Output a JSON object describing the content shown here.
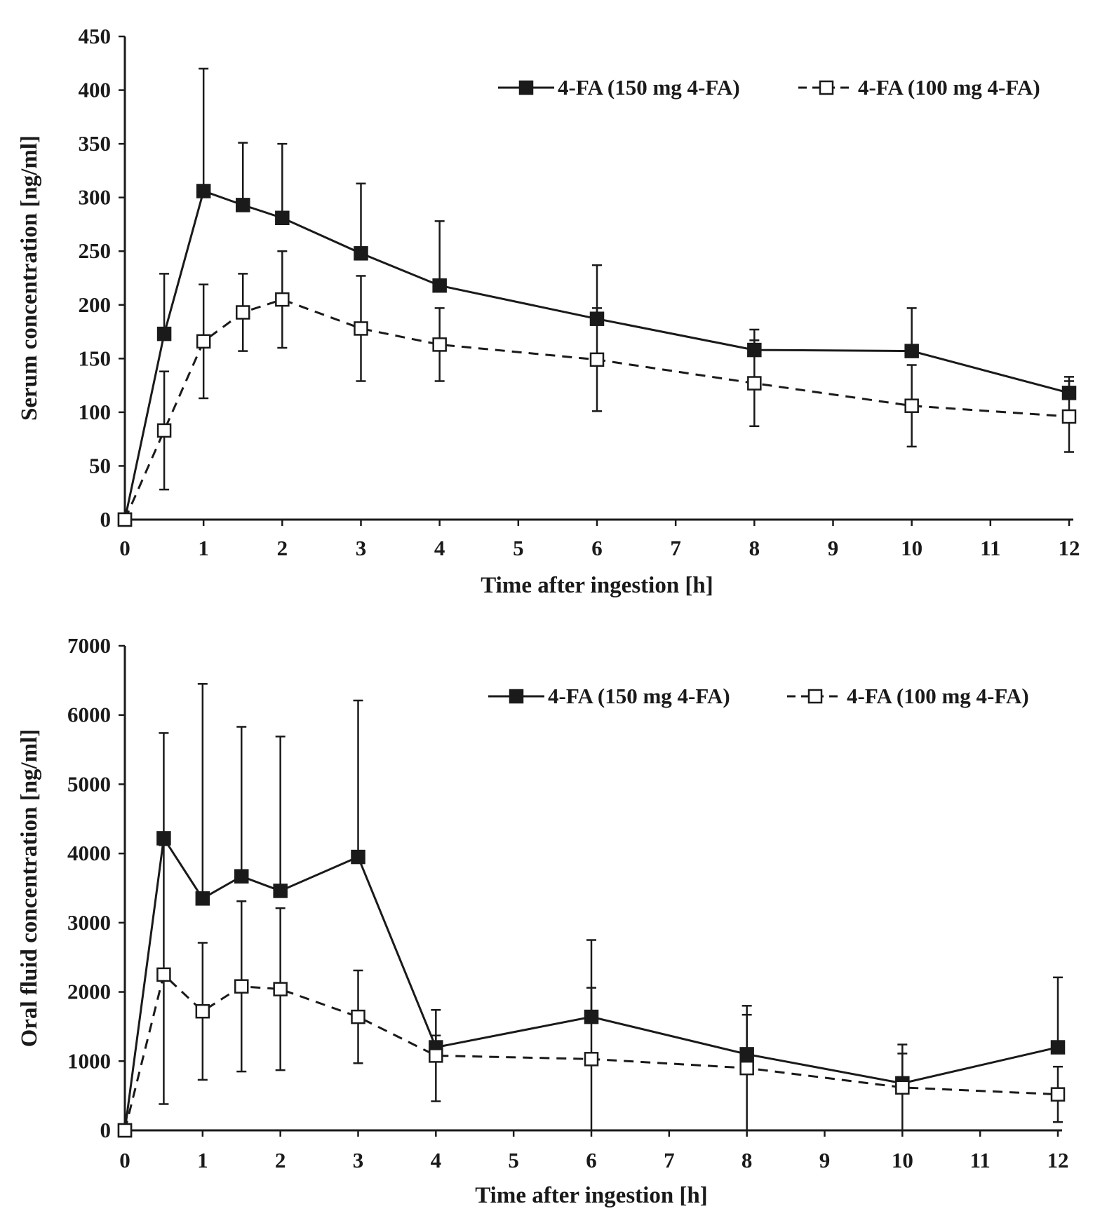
{
  "chart_data": [
    {
      "type": "line",
      "xlabel": "Time after ingestion [h]",
      "ylabel": "Serum concentration  [ng/ml]",
      "xlim": [
        0,
        12
      ],
      "ylim": [
        0,
        450
      ],
      "xticks": [
        0,
        1,
        2,
        3,
        4,
        5,
        6,
        7,
        8,
        9,
        10,
        11,
        12
      ],
      "yticks": [
        0,
        50,
        100,
        150,
        200,
        250,
        300,
        350,
        400,
        450
      ],
      "grid": false,
      "legend_position": "top-right",
      "error_bars": "upper and lower for 100 mg series, upper only for 150 mg series",
      "series": [
        {
          "name": "4-FA (150 mg 4-FA)",
          "marker": "filled-square",
          "line": "solid",
          "x": [
            0,
            0.5,
            1,
            1.5,
            2,
            3,
            4,
            6,
            8,
            10,
            12
          ],
          "y": [
            0,
            173,
            306,
            293,
            281,
            248,
            218,
            187,
            158,
            157,
            118
          ],
          "error": [
            0,
            56,
            114,
            58,
            69,
            65,
            60,
            50,
            19,
            40,
            15
          ]
        },
        {
          "name": "4-FA (100 mg 4-FA)",
          "marker": "open-square",
          "line": "dashed",
          "x": [
            0,
            0.5,
            1,
            1.5,
            2,
            3,
            4,
            6,
            8,
            10,
            12
          ],
          "y": [
            0,
            83,
            166,
            193,
            205,
            178,
            163,
            149,
            127,
            106,
            96
          ],
          "error": [
            0,
            55,
            53,
            36,
            45,
            49,
            34,
            48,
            40,
            38,
            33
          ]
        }
      ]
    },
    {
      "type": "line",
      "xlabel": "Time after ingestion [h]",
      "ylabel": "Oral fluid concentration [ng/ml]",
      "xlim": [
        0,
        12
      ],
      "ylim": [
        0,
        7000
      ],
      "xticks": [
        0,
        1,
        2,
        3,
        4,
        5,
        6,
        7,
        8,
        9,
        10,
        11,
        12
      ],
      "yticks": [
        0,
        1000,
        2000,
        3000,
        4000,
        5000,
        6000,
        7000
      ],
      "grid": false,
      "legend_position": "top-right",
      "error_bars": "upper and lower for 100 mg series, upper only for 150 mg series",
      "series": [
        {
          "name": "4-FA (150 mg 4-FA)",
          "marker": "filled-square",
          "line": "solid",
          "x": [
            0,
            0.5,
            1,
            1.5,
            2,
            3,
            4,
            6,
            8,
            10,
            12
          ],
          "y": [
            0,
            4220,
            3350,
            3670,
            3460,
            3950,
            1200,
            1640,
            1100,
            680,
            1200
          ],
          "error": [
            0,
            1520,
            3100,
            2160,
            2230,
            2260,
            170,
            1110,
            570,
            430,
            1010
          ]
        },
        {
          "name": "4-FA (100 mg 4-FA)",
          "marker": "open-square",
          "line": "dashed",
          "x": [
            0,
            0.5,
            1,
            1.5,
            2,
            3,
            4,
            6,
            8,
            10,
            12
          ],
          "y": [
            0,
            2250,
            1720,
            2080,
            2040,
            1640,
            1080,
            1030,
            900,
            620,
            520
          ],
          "error": [
            0,
            1870,
            990,
            1230,
            1170,
            670,
            660,
            1030,
            900,
            620,
            400
          ]
        }
      ]
    }
  ]
}
